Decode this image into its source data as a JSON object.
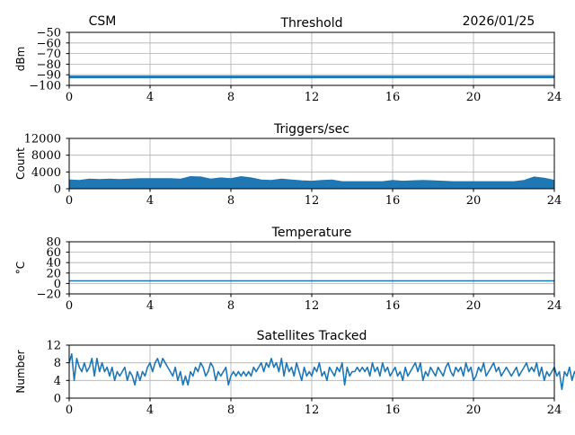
{
  "header": {
    "left": "CSM",
    "right": "2026/01/25"
  },
  "colors": {
    "series": "#1f77b4",
    "grid": "#b0b0b0",
    "axis": "#000000"
  },
  "chart_data": [
    {
      "type": "line",
      "title": "Threshold",
      "xlabel": "",
      "ylabel": "dBm",
      "xlim": [
        0,
        24
      ],
      "ylim": [
        -100,
        -50
      ],
      "xticks": [
        "0",
        "4",
        "8",
        "12",
        "16",
        "20",
        "24"
      ],
      "yticks": [
        "−100",
        "−90",
        "−80",
        "−70",
        "−60",
        "−50"
      ],
      "ytick_values": [
        -100,
        -90,
        -80,
        -70,
        -60,
        -50
      ],
      "grid": true,
      "x": [
        0,
        24
      ],
      "values": [
        -92,
        -92
      ]
    },
    {
      "type": "area",
      "title": "Triggers/sec",
      "xlabel": "",
      "ylabel": "Count",
      "xlim": [
        0,
        24
      ],
      "ylim": [
        0,
        12000
      ],
      "xticks": [
        "0",
        "4",
        "8",
        "12",
        "16",
        "20",
        "24"
      ],
      "yticks": [
        "0",
        "4000",
        "8000",
        "12000"
      ],
      "ytick_values": [
        0,
        4000,
        8000,
        12000
      ],
      "grid": true,
      "x_step": 0.5,
      "values": [
        2100,
        2000,
        2300,
        2200,
        2300,
        2200,
        2300,
        2400,
        2400,
        2400,
        2400,
        2300,
        2900,
        2800,
        2300,
        2600,
        2400,
        2900,
        2600,
        2100,
        2000,
        2300,
        2100,
        1900,
        1800,
        2000,
        2100,
        1700,
        1700,
        1700,
        1700,
        1700,
        2000,
        1800,
        1900,
        2000,
        1900,
        1800,
        1700,
        1700,
        1700,
        1700,
        1700,
        1700,
        1700,
        2000,
        2800,
        2500,
        2000
      ]
    },
    {
      "type": "line",
      "title": "Temperature",
      "xlabel": "",
      "ylabel": "°C",
      "xlim": [
        0,
        24
      ],
      "ylim": [
        -20,
        80
      ],
      "xticks": [
        "0",
        "4",
        "8",
        "12",
        "16",
        "20",
        "24"
      ],
      "yticks": [
        "−20",
        "0",
        "20",
        "40",
        "60",
        "80"
      ],
      "ytick_values": [
        -20,
        0,
        20,
        40,
        60,
        80
      ],
      "grid": true,
      "x": [
        0,
        24
      ],
      "values": [
        5,
        5
      ]
    },
    {
      "type": "line",
      "title": "Satellites Tracked",
      "xlabel": "",
      "ylabel": "Number",
      "xlim": [
        0,
        24
      ],
      "ylim": [
        0,
        12
      ],
      "xticks": [
        "0",
        "4",
        "8",
        "12",
        "16",
        "20",
        "24"
      ],
      "yticks": [
        "0",
        "4",
        "8",
        "12"
      ],
      "ytick_values": [
        0,
        4,
        8,
        12
      ],
      "grid": true,
      "x_step": 0.125,
      "values": [
        8,
        10,
        4,
        9,
        7,
        6,
        8,
        6,
        7,
        9,
        5,
        9,
        6,
        8,
        6,
        7,
        5,
        7,
        4,
        6,
        5,
        6,
        7,
        4,
        6,
        5,
        3,
        6,
        4,
        6,
        5,
        7,
        8,
        6,
        8,
        9,
        7,
        9,
        8,
        7,
        6,
        5,
        7,
        4,
        6,
        3,
        5,
        3,
        6,
        5,
        7,
        6,
        8,
        7,
        5,
        6,
        8,
        7,
        4,
        6,
        5,
        6,
        7,
        3,
        5,
        6,
        5,
        6,
        5,
        6,
        5,
        6,
        5,
        7,
        6,
        7,
        8,
        6,
        8,
        7,
        9,
        7,
        8,
        6,
        9,
        5,
        8,
        6,
        7,
        5,
        8,
        6,
        4,
        7,
        5,
        6,
        5,
        7,
        6,
        8,
        5,
        6,
        4,
        7,
        6,
        5,
        7,
        6,
        8,
        3,
        7,
        5,
        6,
        6,
        7,
        6,
        7,
        6,
        7,
        5,
        8,
        6,
        7,
        5,
        8,
        6,
        7,
        5,
        6,
        7,
        5,
        6,
        4,
        7,
        5,
        6,
        7,
        8,
        6,
        8,
        4,
        6,
        5,
        7,
        6,
        5,
        7,
        6,
        5,
        7,
        8,
        6,
        5,
        7,
        6,
        7,
        5,
        8,
        6,
        7,
        4,
        5,
        7,
        6,
        8,
        5,
        6,
        7,
        8,
        6,
        7,
        5,
        6,
        7,
        6,
        5,
        6,
        7,
        5,
        6,
        7,
        8,
        6,
        7,
        6,
        8,
        5,
        7,
        4,
        6,
        5,
        6,
        7,
        5,
        6,
        2,
        6,
        5,
        7,
        4,
        6,
        5,
        7,
        6,
        5,
        6,
        5,
        7,
        6,
        8,
        6,
        9,
        7,
        8,
        10,
        7,
        9,
        10,
        8,
        6,
        7,
        5,
        8,
        6,
        7,
        9,
        6,
        8,
        7,
        8,
        6,
        7,
        8,
        6,
        7,
        8,
        6,
        5,
        7,
        6,
        8,
        6,
        7,
        6,
        8,
        5,
        7,
        6,
        5,
        6,
        4,
        6,
        5,
        7,
        3,
        5,
        3,
        7,
        5,
        6,
        8,
        4,
        7,
        8,
        7
      ]
    }
  ]
}
